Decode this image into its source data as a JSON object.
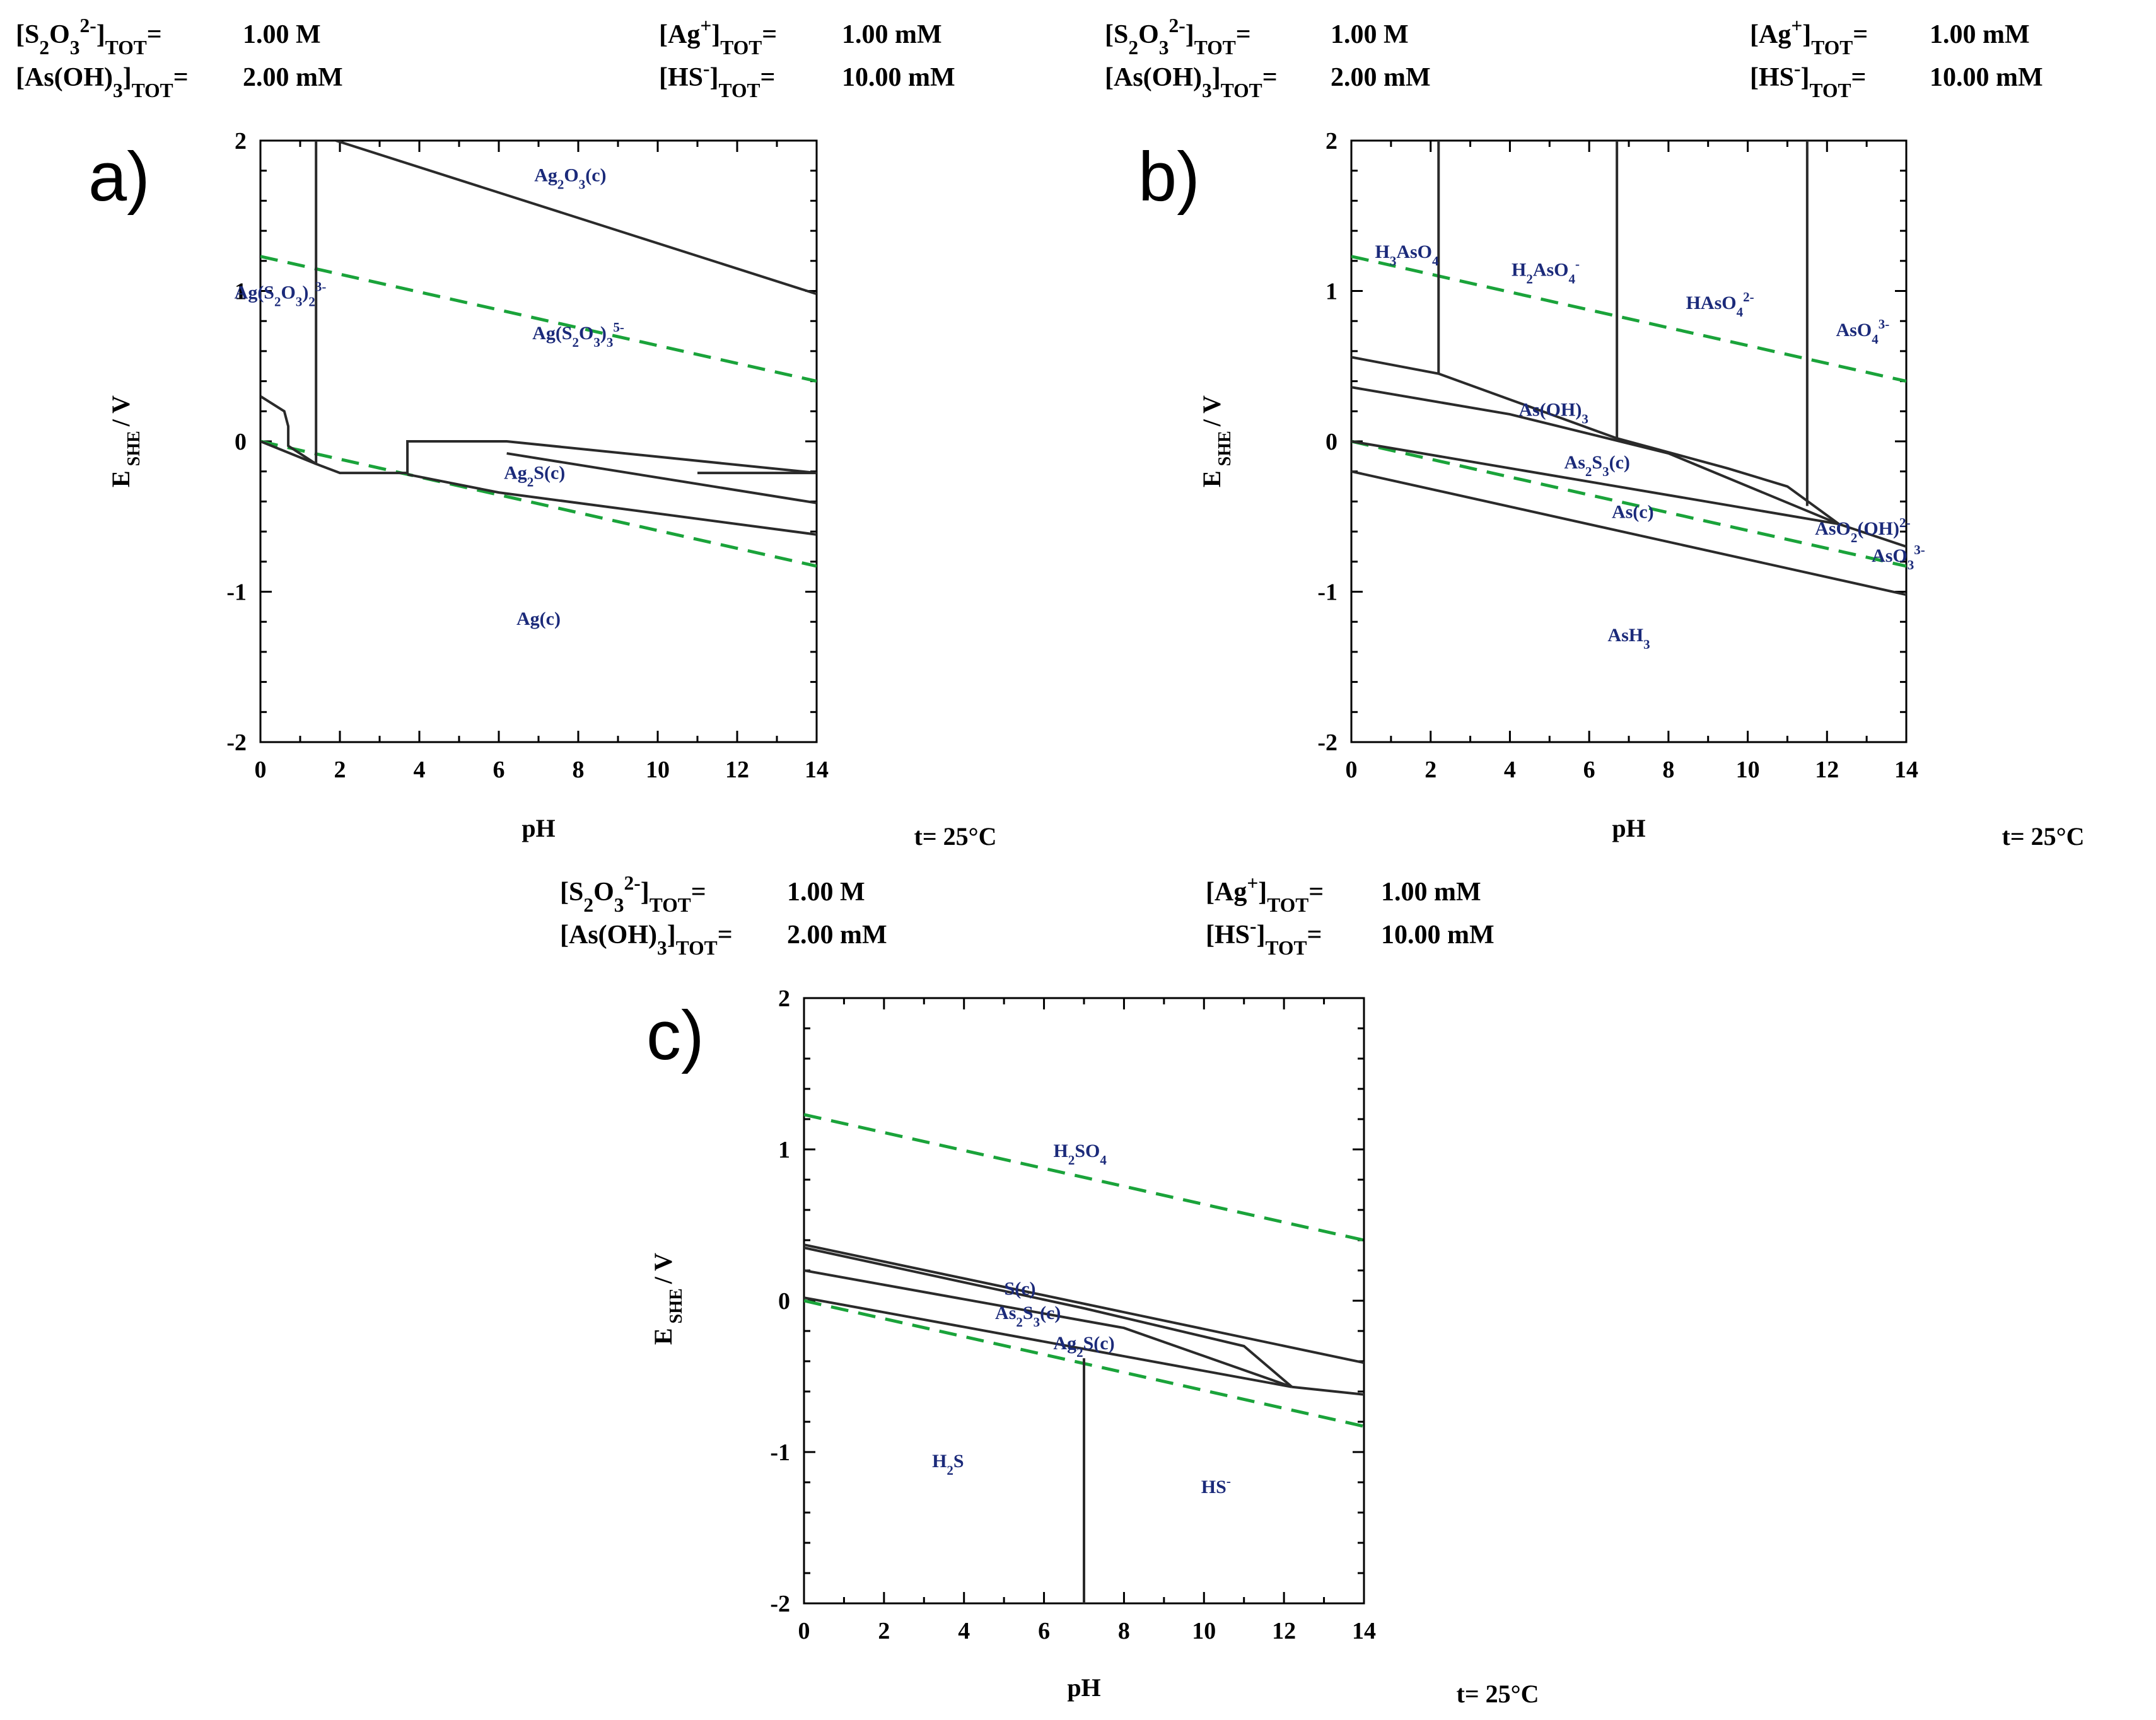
{
  "chart_data": [
    {
      "type": "line",
      "panel": "a)",
      "title": "",
      "xlabel": "pH",
      "ylabel": "E SHE / V",
      "xlim": [
        0,
        14
      ],
      "ylim": [
        -2,
        2
      ],
      "xticks": [
        "0",
        "2",
        "4",
        "6",
        "8",
        "10",
        "12",
        "14"
      ],
      "yticks": [
        "-2",
        "-1",
        "0",
        "1",
        "2"
      ],
      "conditions": [
        {
          "text": "[S2O3 2-]TOT=",
          "value": "1.00 M"
        },
        {
          "text": "[As(OH)3]TOT=",
          "value": "2.00 mM"
        },
        {
          "text": "[Ag+]TOT=",
          "value": "1.00 mM"
        },
        {
          "text": "[HS-]TOT=",
          "value": "10.00 mM"
        }
      ],
      "temperature": "t= 25°C",
      "water_lines": [
        {
          "x": [
            0,
            14
          ],
          "y": [
            1.23,
            0.4
          ]
        },
        {
          "x": [
            0,
            14
          ],
          "y": [
            0.0,
            -0.83
          ]
        }
      ],
      "boundaries": [
        {
          "x": [
            1.4,
            1.4
          ],
          "y": [
            -0.15,
            2.0
          ]
        },
        {
          "x": [
            1.9,
            14
          ],
          "y": [
            2.0,
            0.98
          ]
        },
        {
          "x": [
            0,
            0.6,
            0.7,
            0.7,
            1.4
          ],
          "y": [
            0.3,
            0.2,
            0.1,
            -0.03,
            -0.15
          ]
        },
        {
          "x": [
            0,
            1.4,
            2.0,
            3.7
          ],
          "y": [
            0.0,
            -0.15,
            -0.21,
            -0.21
          ]
        },
        {
          "x": [
            3.7,
            3.7,
            6.2,
            14
          ],
          "y": [
            -0.22,
            0.0,
            0.0,
            -0.21
          ]
        },
        {
          "x": [
            3.7,
            6.0,
            14
          ],
          "y": [
            -0.22,
            -0.34,
            -0.62
          ]
        },
        {
          "x": [
            6.2,
            14
          ],
          "y": [
            -0.08,
            -0.41
          ]
        },
        {
          "x": [
            11.0,
            14
          ],
          "y": [
            -0.21,
            -0.21
          ]
        }
      ],
      "labels": [
        {
          "text": "Ag2O3(c)",
          "x": 7.8,
          "y": 1.73
        },
        {
          "text": "Ag(S2O3)2 3-",
          "x": 0.5,
          "y": 0.95
        },
        {
          "text": "Ag(S2O3)3 5-",
          "x": 8.0,
          "y": 0.68
        },
        {
          "text": "Ag2S(c)",
          "x": 6.9,
          "y": -0.25
        },
        {
          "text": "Ag(c)",
          "x": 7.0,
          "y": -1.22
        }
      ]
    },
    {
      "type": "line",
      "panel": "b)",
      "title": "",
      "xlabel": "pH",
      "ylabel": "E SHE / V",
      "xlim": [
        0,
        14
      ],
      "ylim": [
        -2,
        2
      ],
      "xticks": [
        "0",
        "2",
        "4",
        "6",
        "8",
        "10",
        "12",
        "14"
      ],
      "yticks": [
        "-2",
        "-1",
        "0",
        "1",
        "2"
      ],
      "conditions": [
        {
          "text": "[S2O3 2-]TOT=",
          "value": "1.00 M"
        },
        {
          "text": "[As(OH)3]TOT=",
          "value": "2.00 mM"
        },
        {
          "text": "[Ag+]TOT=",
          "value": "1.00 mM"
        },
        {
          "text": "[HS-]TOT=",
          "value": "10.00 mM"
        }
      ],
      "temperature": "t= 25°C",
      "water_lines": [
        {
          "x": [
            0,
            14
          ],
          "y": [
            1.23,
            0.4
          ]
        },
        {
          "x": [
            0,
            14
          ],
          "y": [
            0.0,
            -0.83
          ]
        }
      ],
      "boundaries": [
        {
          "x": [
            2.2,
            2.2
          ],
          "y": [
            0.45,
            2.0
          ]
        },
        {
          "x": [
            6.7,
            6.7
          ],
          "y": [
            0.0,
            2.0
          ]
        },
        {
          "x": [
            11.5,
            11.5
          ],
          "y": [
            -0.43,
            2.0
          ]
        },
        {
          "x": [
            0,
            2.2,
            6.7,
            9.5,
            11.0,
            12.3
          ],
          "y": [
            0.56,
            0.45,
            0.02,
            -0.18,
            -0.3,
            -0.55
          ]
        },
        {
          "x": [
            0,
            4.0,
            8.0,
            12.3
          ],
          "y": [
            0.36,
            0.18,
            -0.08,
            -0.55
          ]
        },
        {
          "x": [
            0,
            12.3
          ],
          "y": [
            0.0,
            -0.55
          ]
        },
        {
          "x": [
            12.3,
            14
          ],
          "y": [
            -0.55,
            -0.7
          ]
        },
        {
          "x": [
            0,
            14
          ],
          "y": [
            -0.2,
            -1.02
          ]
        }
      ],
      "labels": [
        {
          "text": "H3AsO4",
          "x": 1.4,
          "y": 1.22
        },
        {
          "text": "H2AsO4-",
          "x": 4.9,
          "y": 1.1
        },
        {
          "text": "HAsO4 2-",
          "x": 9.3,
          "y": 0.88
        },
        {
          "text": "AsO4 3-",
          "x": 12.9,
          "y": 0.7
        },
        {
          "text": "As(OH)3",
          "x": 5.1,
          "y": 0.17
        },
        {
          "text": "As2S3(c)",
          "x": 6.2,
          "y": -0.18
        },
        {
          "text": "As(c)",
          "x": 7.1,
          "y": -0.51
        },
        {
          "text": "AsO2(OH) 2-",
          "x": 12.9,
          "y": -0.62
        },
        {
          "text": "AsO3 3-",
          "x": 13.8,
          "y": -0.8
        },
        {
          "text": "AsH3",
          "x": 7.0,
          "y": -1.33
        }
      ]
    },
    {
      "type": "line",
      "panel": "c)",
      "title": "",
      "xlabel": "pH",
      "ylabel": "E SHE / V",
      "xlim": [
        0,
        14
      ],
      "ylim": [
        -2,
        2
      ],
      "xticks": [
        "0",
        "2",
        "4",
        "6",
        "8",
        "10",
        "12",
        "14"
      ],
      "yticks": [
        "-2",
        "-1",
        "0",
        "1",
        "2"
      ],
      "conditions": [
        {
          "text": "[S2O3 2-]TOT=",
          "value": "1.00 M"
        },
        {
          "text": "[As(OH)3]TOT=",
          "value": "2.00 mM"
        },
        {
          "text": "[Ag+]TOT=",
          "value": "1.00 mM"
        },
        {
          "text": "[HS-]TOT=",
          "value": "10.00 mM"
        }
      ],
      "temperature": "t= 25°C",
      "water_lines": [
        {
          "x": [
            0,
            14
          ],
          "y": [
            1.23,
            0.4
          ]
        },
        {
          "x": [
            0,
            14
          ],
          "y": [
            0.0,
            -0.83
          ]
        }
      ],
      "boundaries": [
        {
          "x": [
            7.0,
            7.0
          ],
          "y": [
            -2.0,
            -0.38
          ]
        },
        {
          "x": [
            0,
            14
          ],
          "y": [
            0.37,
            -0.41
          ]
        },
        {
          "x": [
            0,
            7.0,
            11.0,
            12.2
          ],
          "y": [
            0.35,
            -0.05,
            -0.3,
            -0.57
          ]
        },
        {
          "x": [
            0,
            8.0,
            12.2
          ],
          "y": [
            0.2,
            -0.18,
            -0.57
          ]
        },
        {
          "x": [
            0,
            12.2
          ],
          "y": [
            0.02,
            -0.57
          ]
        },
        {
          "x": [
            12.2,
            14
          ],
          "y": [
            -0.57,
            -0.62
          ]
        }
      ],
      "labels": [
        {
          "text": "H2SO4",
          "x": 6.9,
          "y": 0.95
        },
        {
          "text": "S(c)",
          "x": 5.4,
          "y": 0.04
        },
        {
          "text": "As2S3(c)",
          "x": 5.6,
          "y": -0.12
        },
        {
          "text": "Ag2S(c)",
          "x": 7.0,
          "y": -0.32
        },
        {
          "text": "H2S",
          "x": 3.6,
          "y": -1.1
        },
        {
          "text": "HS-",
          "x": 10.3,
          "y": -1.27
        }
      ]
    }
  ]
}
